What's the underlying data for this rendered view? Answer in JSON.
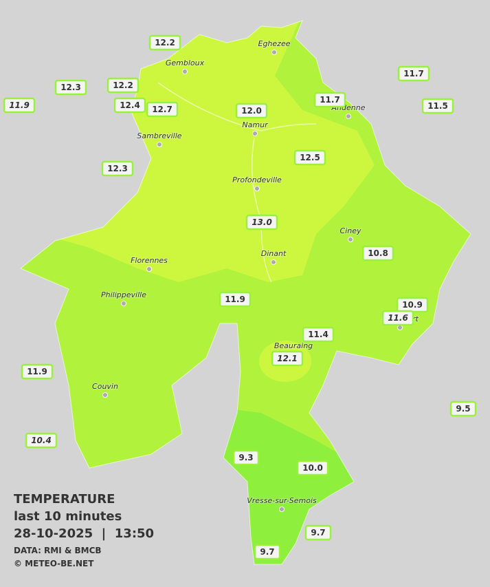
{
  "cities": [
    {
      "name": "Eghezee"
    },
    {
      "name": "Gembloux"
    },
    {
      "name": "Andenne"
    },
    {
      "name": "Namur"
    },
    {
      "name": "Sambreville"
    },
    {
      "name": "Profondeville"
    },
    {
      "name": "Ciney"
    },
    {
      "name": "Dinant"
    },
    {
      "name": "Florennes"
    },
    {
      "name": "Philippeville"
    },
    {
      "name": "Beauraing"
    },
    {
      "name": "Rochefort"
    },
    {
      "name": "Couvin"
    },
    {
      "name": "Vresse-sur-Semois"
    }
  ],
  "stations": [
    {
      "label": "12.2"
    },
    {
      "label": "12.3"
    },
    {
      "label": "12.2"
    },
    {
      "label": "11.9",
      "italic": true
    },
    {
      "label": "12.4"
    },
    {
      "label": "12.7"
    },
    {
      "label": "12.0"
    },
    {
      "label": "11.7"
    },
    {
      "label": "11.7"
    },
    {
      "label": "11.5"
    },
    {
      "label": "12.3"
    },
    {
      "label": "12.5"
    },
    {
      "label": "13.0",
      "italic": true
    },
    {
      "label": "10.8"
    },
    {
      "label": "10.9"
    },
    {
      "label": "11.6",
      "italic": true
    },
    {
      "label": "11.9"
    },
    {
      "label": "11.4"
    },
    {
      "label": "12.1",
      "italic": true
    },
    {
      "label": "11.9"
    },
    {
      "label": "10.4",
      "italic": true
    },
    {
      "label": "9.5"
    },
    {
      "label": "9.3"
    },
    {
      "label": "10.0"
    },
    {
      "label": "9.7"
    },
    {
      "label": "9.7"
    }
  ],
  "legend": {
    "title": "TEMPERATURE",
    "subtitle": "last 10 minutes",
    "datetime": "28-10-2025  |  13:50",
    "source": "DATA: RMI & BMCB",
    "credit": "© METEO-BE.NET"
  }
}
